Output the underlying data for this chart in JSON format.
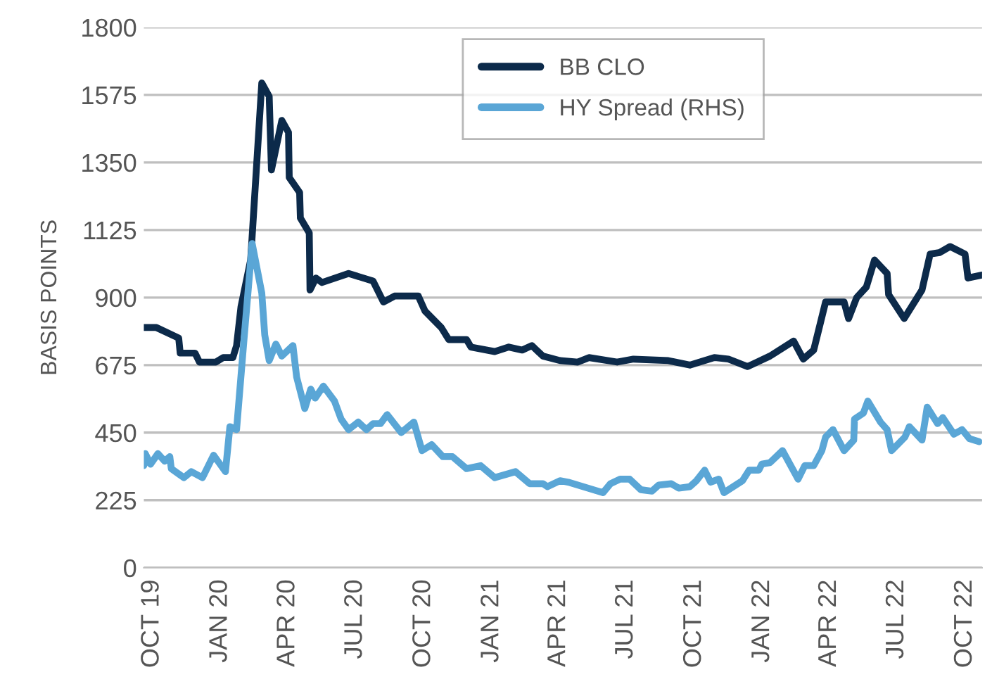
{
  "chart_data": {
    "type": "line",
    "ylabel": "BASIS POINTS",
    "ylim": [
      0,
      1800
    ],
    "yticks": [
      0,
      225,
      450,
      675,
      900,
      1125,
      1350,
      1575,
      1800
    ],
    "xlim": [
      "2019-09-20",
      "2022-10-24"
    ],
    "xticks": [
      {
        "value": "2019-10-01",
        "label": "OCT 19"
      },
      {
        "value": "2020-01-01",
        "label": "JAN 20"
      },
      {
        "value": "2020-04-01",
        "label": "APR 20"
      },
      {
        "value": "2020-07-01",
        "label": "JUL 20"
      },
      {
        "value": "2020-10-01",
        "label": "OCT 20"
      },
      {
        "value": "2021-01-01",
        "label": "JAN 21"
      },
      {
        "value": "2021-04-01",
        "label": "APR 21"
      },
      {
        "value": "2021-07-01",
        "label": "JUL 21"
      },
      {
        "value": "2021-10-01",
        "label": "OCT 21"
      },
      {
        "value": "2022-01-01",
        "label": "JAN 22"
      },
      {
        "value": "2022-04-01",
        "label": "APR 22"
      },
      {
        "value": "2022-07-01",
        "label": "JUL 22"
      },
      {
        "value": "2022-10-01",
        "label": "OCT 22"
      }
    ],
    "grid": "y",
    "legend": "top",
    "marker": "none",
    "line_style": "solid",
    "series": [
      {
        "name": "BB CLO",
        "color": "#0c2a4a",
        "x": [
          "2019-09-20",
          "2019-10-07",
          "2019-11-06",
          "2019-11-08",
          "2019-11-28",
          "2019-12-04",
          "2019-12-26",
          "2020-01-05",
          "2020-01-18",
          "2020-01-23",
          "2020-01-29",
          "2020-02-11",
          "2020-02-26",
          "2020-03-07",
          "2020-03-10",
          "2020-03-24",
          "2020-04-02",
          "2020-04-03",
          "2020-04-17",
          "2020-04-18",
          "2020-04-30",
          "2020-05-01",
          "2020-05-09",
          "2020-05-17",
          "2020-06-22",
          "2020-07-25",
          "2020-08-08",
          "2020-08-23",
          "2020-09-24",
          "2020-10-03",
          "2020-10-25",
          "2020-11-04",
          "2020-11-28",
          "2020-12-04",
          "2021-01-05",
          "2021-01-24",
          "2021-02-11",
          "2021-02-24",
          "2021-03-11",
          "2021-04-03",
          "2021-04-27",
          "2021-05-12",
          "2021-06-19",
          "2021-07-11",
          "2021-08-27",
          "2021-09-25",
          "2021-10-28",
          "2021-11-16",
          "2021-12-12",
          "2022-01-11",
          "2022-02-12",
          "2022-02-25",
          "2022-03-11",
          "2022-03-27",
          "2022-04-21",
          "2022-04-27",
          "2022-05-08",
          "2022-05-21",
          "2022-06-01",
          "2022-06-18",
          "2022-06-20",
          "2022-07-11",
          "2022-08-04",
          "2022-08-15",
          "2022-08-28",
          "2022-09-11",
          "2022-10-01",
          "2022-10-05",
          "2022-10-24"
        ],
        "values": [
          800,
          800,
          765,
          715,
          715,
          685,
          685,
          700,
          700,
          740,
          870,
          1025,
          1615,
          1570,
          1325,
          1490,
          1450,
          1300,
          1250,
          1165,
          1115,
          925,
          965,
          950,
          980,
          955,
          885,
          905,
          905,
          855,
          800,
          760,
          760,
          735,
          720,
          735,
          725,
          740,
          705,
          690,
          685,
          700,
          685,
          695,
          690,
          675,
          700,
          695,
          670,
          705,
          755,
          695,
          725,
          885,
          885,
          830,
          900,
          935,
          1025,
          980,
          910,
          830,
          925,
          1045,
          1050,
          1070,
          1045,
          965,
          975
        ]
      },
      {
        "name": "HY Spread (RHS)",
        "color": "#5aa6d6",
        "x": [
          "2019-09-20",
          "2019-09-22",
          "2019-09-29",
          "2019-10-09",
          "2019-10-18",
          "2019-10-25",
          "2019-10-27",
          "2019-11-13",
          "2019-11-23",
          "2019-12-08",
          "2019-12-23",
          "2020-01-08",
          "2020-01-14",
          "2020-01-23",
          "2020-02-02",
          "2020-02-13",
          "2020-02-26",
          "2020-03-01",
          "2020-03-07",
          "2020-03-16",
          "2020-03-24",
          "2020-04-08",
          "2020-04-13",
          "2020-04-24",
          "2020-05-02",
          "2020-05-08",
          "2020-05-19",
          "2020-05-28",
          "2020-06-03",
          "2020-06-12",
          "2020-06-22",
          "2020-07-05",
          "2020-07-16",
          "2020-07-25",
          "2020-08-04",
          "2020-08-13",
          "2020-09-01",
          "2020-09-18",
          "2020-09-29",
          "2020-10-12",
          "2020-10-27",
          "2020-11-09",
          "2020-11-28",
          "2020-12-17",
          "2021-01-05",
          "2021-02-02",
          "2021-02-21",
          "2021-03-11",
          "2021-03-17",
          "2021-04-03",
          "2021-04-14",
          "2021-05-31",
          "2021-06-10",
          "2021-06-23",
          "2021-07-06",
          "2021-07-21",
          "2021-08-05",
          "2021-08-14",
          "2021-08-31",
          "2021-09-10",
          "2021-09-25",
          "2021-10-04",
          "2021-10-15",
          "2021-10-23",
          "2021-11-03",
          "2021-11-10",
          "2021-12-05",
          "2021-12-14",
          "2021-12-27",
          "2021-12-31",
          "2022-01-11",
          "2022-01-28",
          "2022-02-18",
          "2022-02-27",
          "2022-03-11",
          "2022-03-22",
          "2022-03-27",
          "2022-04-06",
          "2022-04-21",
          "2022-05-04",
          "2022-05-05",
          "2022-05-17",
          "2022-05-23",
          "2022-06-09",
          "2022-06-18",
          "2022-06-24",
          "2022-07-12",
          "2022-07-18",
          "2022-08-04",
          "2022-08-11",
          "2022-08-25",
          "2022-09-01",
          "2022-09-16",
          "2022-09-27",
          "2022-10-07",
          "2022-10-20"
        ],
        "values": [
          340,
          380,
          345,
          380,
          355,
          370,
          330,
          300,
          320,
          300,
          375,
          320,
          470,
          460,
          760,
          1080,
          915,
          775,
          690,
          745,
          705,
          740,
          635,
          530,
          595,
          565,
          605,
          575,
          555,
          495,
          460,
          485,
          460,
          480,
          480,
          510,
          450,
          485,
          390,
          410,
          370,
          370,
          330,
          340,
          300,
          320,
          280,
          280,
          270,
          290,
          285,
          250,
          280,
          295,
          295,
          260,
          255,
          275,
          280,
          265,
          270,
          290,
          325,
          285,
          295,
          250,
          290,
          325,
          325,
          345,
          350,
          390,
          295,
          340,
          340,
          390,
          435,
          460,
          390,
          425,
          495,
          515,
          555,
          485,
          460,
          390,
          435,
          470,
          425,
          535,
          480,
          500,
          445,
          460,
          430,
          420
        ]
      }
    ]
  }
}
